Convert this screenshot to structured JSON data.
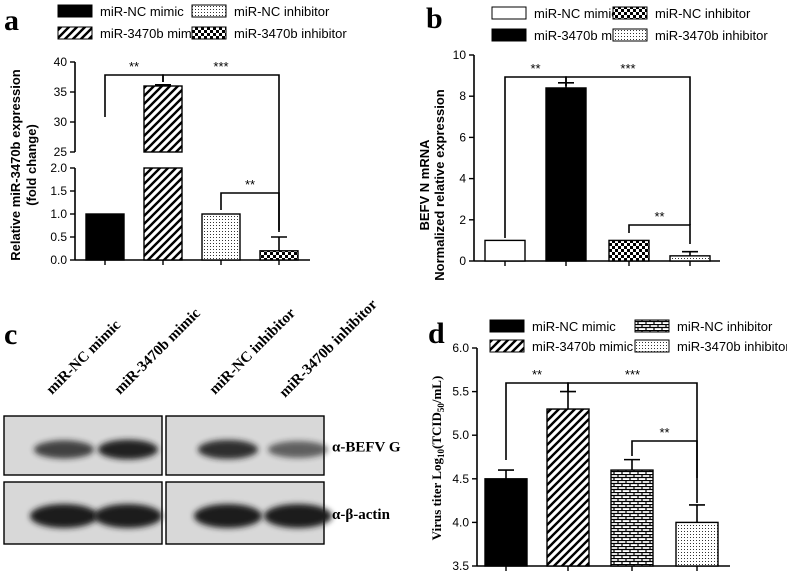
{
  "panels": {
    "a": "a",
    "b": "b",
    "c": "c",
    "d": "d"
  },
  "colors": {
    "black": "#000000",
    "white": "#ffffff",
    "blot_bg": "#d8d8d8",
    "band": "#1a1a1a"
  },
  "chart_data": [
    {
      "panel": "a",
      "type": "bar",
      "ylabel_lines": [
        "Relative miR-3470b expression",
        "(fold change)"
      ],
      "categories": [
        "miR-NC mimic",
        "miR-3470b mimic",
        "miR-NC inhibitor",
        "miR-3470b inhibitor"
      ],
      "fills": [
        "solid",
        "diag",
        "dots",
        "check"
      ],
      "values": [
        1.0,
        36.0,
        1.0,
        0.2
      ],
      "errors": [
        0,
        0.2,
        0,
        0.3
      ],
      "y_axis_break": true,
      "ylim_lower": [
        0,
        2.0
      ],
      "ylim_upper": [
        25,
        40
      ],
      "yticks_lower": [
        "0.0",
        "0.5",
        "1.0",
        "1.5",
        "2.0"
      ],
      "yticks_upper": [
        "25",
        "30",
        "35",
        "40"
      ],
      "legend": [
        "miR-NC mimic",
        "miR-3470b mimic",
        "miR-NC inhibitor",
        "miR-3470b inhibitor"
      ],
      "legend_fills": [
        "solid",
        "diag",
        "dots",
        "check"
      ],
      "significance": [
        {
          "from": 0,
          "to": 1,
          "label": "**"
        },
        {
          "from": 1,
          "to": 3,
          "label": "***"
        },
        {
          "from": 2,
          "to": 3,
          "label": "**"
        }
      ]
    },
    {
      "panel": "b",
      "type": "bar",
      "title_lines": [
        "BEFV N mRNA",
        "Normalized relative expression"
      ],
      "categories": [
        "miR-NC mimic",
        "miR-3470b mimic",
        "miR-NC inhibitor",
        "miR-3470b inhibitor"
      ],
      "fills": [
        "white",
        "solid",
        "check",
        "dots"
      ],
      "values": [
        1.0,
        8.4,
        1.0,
        0.25
      ],
      "errors": [
        0,
        0.25,
        0,
        0.2
      ],
      "ylim": [
        0,
        10
      ],
      "yticks": [
        "0",
        "2",
        "4",
        "6",
        "8",
        "10"
      ],
      "legend": [
        "miR-NC mimic",
        "miR-3470b mimic",
        "miR-NC inhibitor",
        "miR-3470b inhibitor"
      ],
      "legend_fills": [
        "white",
        "solid",
        "check",
        "dots"
      ],
      "significance": [
        {
          "from": 0,
          "to": 1,
          "label": "**"
        },
        {
          "from": 1,
          "to": 3,
          "label": "***"
        },
        {
          "from": 2,
          "to": 3,
          "label": "**"
        }
      ]
    },
    {
      "panel": "d",
      "type": "bar",
      "ylabel": "Virus titer Log",
      "ylabel_sub": "10",
      "ylabel_mid": "(TCID",
      "ylabel_sub2": "50",
      "ylabel_end": "/mL)",
      "categories": [
        "miR-NC mimic",
        "miR-3470b mimic",
        "miR-NC inhibitor",
        "miR-3470b inhibitor"
      ],
      "fills": [
        "solid",
        "diag",
        "brick",
        "dots"
      ],
      "values": [
        4.5,
        5.3,
        4.6,
        4.0
      ],
      "errors": [
        0.1,
        0.2,
        0.12,
        0.2
      ],
      "ylim": [
        3.5,
        6.0
      ],
      "yticks": [
        "3.5",
        "4.0",
        "4.5",
        "5.0",
        "5.5",
        "6.0"
      ],
      "legend": [
        "miR-NC mimic",
        "miR-NC inhibitor",
        "miR-3470b mimic",
        "miR-3470b inhibitor"
      ],
      "legend_fills": [
        "solid",
        "brick",
        "diag",
        "dots"
      ],
      "significance": [
        {
          "from": 0,
          "to": 1,
          "label": "**"
        },
        {
          "from": 1,
          "to": 3,
          "label": "***"
        },
        {
          "from": 2,
          "to": 3,
          "label": "**"
        }
      ]
    }
  ],
  "blot": {
    "lanes": [
      "miR-NC mimic",
      "miR-3470b mimic",
      "miR-NC inhibitor",
      "miR-3470b inhibitor"
    ],
    "rows": [
      {
        "label": "α-BEFV G",
        "intensity": [
          0.7,
          0.95,
          0.85,
          0.45
        ]
      },
      {
        "label": "α-β-actin",
        "intensity": [
          1.0,
          1.0,
          1.0,
          1.0
        ]
      }
    ]
  }
}
